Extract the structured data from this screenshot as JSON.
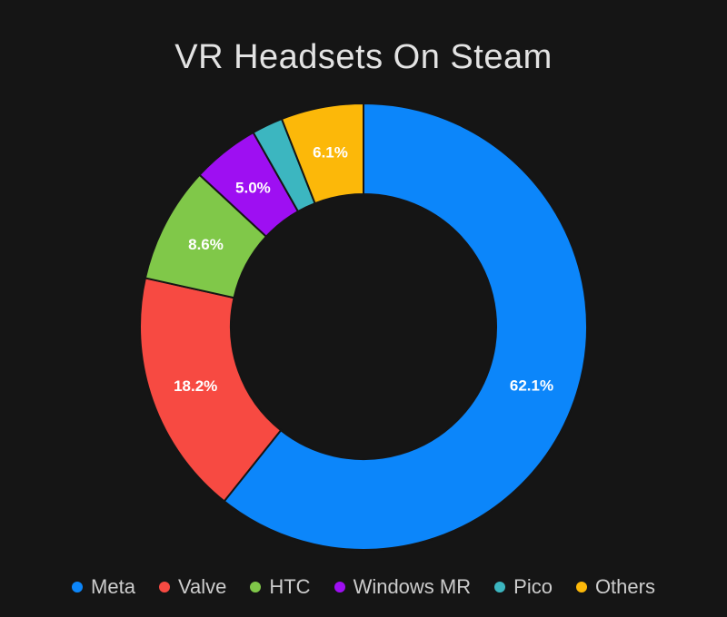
{
  "title": "VR Headsets On Steam",
  "colors": {
    "background": "#151515",
    "title_text": "#e3e3e3",
    "legend_text": "#cccccc",
    "slice_label_text": "#ffffff"
  },
  "chart_data": {
    "type": "pie",
    "subtype": "donut",
    "title": "VR Headsets On Steam",
    "legend_position": "bottom",
    "start_angle_deg": 0,
    "direction": "clockwise",
    "labels_shown_as": "percent",
    "slices": [
      {
        "label": "Meta",
        "value": 62.1,
        "display": "62.1%",
        "color": "#0c86fa",
        "label_visible": true
      },
      {
        "label": "Valve",
        "value": 18.2,
        "display": "18.2%",
        "color": "#f74a42",
        "label_visible": true
      },
      {
        "label": "HTC",
        "value": 8.6,
        "display": "8.6%",
        "color": "#80c849",
        "label_visible": true
      },
      {
        "label": "Windows MR",
        "value": 5.0,
        "display": "5.0%",
        "color": "#9e0ff2",
        "label_visible": true
      },
      {
        "label": "Pico",
        "value": 2.3,
        "display": "",
        "color": "#3cb6c0",
        "label_visible": false,
        "value_estimated": true
      },
      {
        "label": "Others",
        "value": 6.1,
        "display": "6.1%",
        "color": "#fcb809",
        "label_visible": true
      }
    ]
  }
}
